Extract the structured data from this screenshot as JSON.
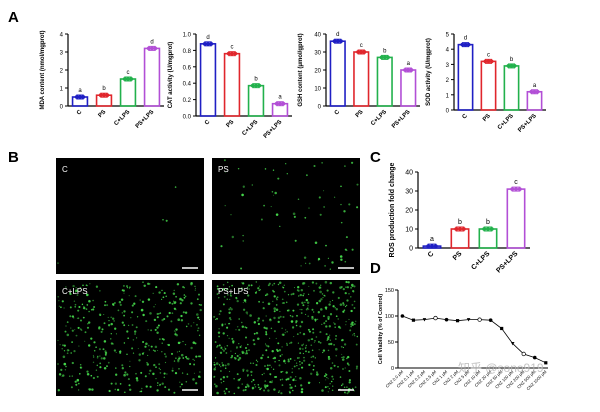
{
  "panel_labels": {
    "a": "A",
    "b": "B",
    "c": "C",
    "d": "D"
  },
  "colors": {
    "C": "#1f1fc4",
    "PS": "#e0262c",
    "C+LPS": "#22b14c",
    "PS+LPS": "#b24fd6",
    "cells": "#44d64a",
    "axis": "#000000"
  },
  "micrographs": [
    {
      "label": "C",
      "density": 4
    },
    {
      "label": "PS",
      "density": 70
    },
    {
      "label": "C+LPS",
      "density": 420
    },
    {
      "label": "PS+LPS",
      "density": 620
    }
  ],
  "watermark": "知乎 @sono919",
  "chart_data": [
    {
      "type": "bar",
      "panel": "A",
      "ylabel": "MDA content (nmol/mgprot)",
      "categories": [
        "C",
        "PS",
        "C+LPS",
        "PS+LPS"
      ],
      "values": [
        0.5,
        0.6,
        1.5,
        3.2
      ],
      "letters": [
        "a",
        "b",
        "c",
        "d"
      ],
      "ylim": [
        0,
        4
      ],
      "yticks": [
        "0",
        "1",
        "2",
        "3",
        "4"
      ]
    },
    {
      "type": "bar",
      "panel": "A",
      "ylabel": "CAT activity (U/mgprot)",
      "categories": [
        "C",
        "PS",
        "C+LPS",
        "PS+LPS"
      ],
      "values": [
        0.88,
        0.76,
        0.37,
        0.15
      ],
      "letters": [
        "d",
        "c",
        "b",
        "a"
      ],
      "ylim": [
        0,
        1.0
      ],
      "yticks": [
        "0.0",
        "0.2",
        "0.4",
        "0.6",
        "0.8",
        "1.0"
      ]
    },
    {
      "type": "bar",
      "panel": "A",
      "ylabel": "GSH content (μmol/gprot)",
      "categories": [
        "C",
        "PS",
        "C+LPS",
        "PS+LPS"
      ],
      "values": [
        36,
        30,
        27,
        20
      ],
      "letters": [
        "d",
        "c",
        "b",
        "a"
      ],
      "ylim": [
        0,
        40
      ],
      "yticks": [
        "0",
        "10",
        "20",
        "30",
        "40"
      ]
    },
    {
      "type": "bar",
      "panel": "A",
      "ylabel": "SOD activity (U/mgprot)",
      "categories": [
        "C",
        "PS",
        "C+LPS",
        "PS+LPS"
      ],
      "values": [
        4.3,
        3.2,
        2.9,
        1.2
      ],
      "letters": [
        "d",
        "c",
        "b",
        "a"
      ],
      "ylim": [
        0,
        5
      ],
      "yticks": [
        "0",
        "1",
        "2",
        "3",
        "4",
        "5"
      ]
    },
    {
      "type": "bar",
      "panel": "C",
      "ylabel": "ROS production fold change",
      "categories": [
        "C",
        "PS",
        "C+LPS",
        "PS+LPS"
      ],
      "values": [
        1.0,
        10,
        10,
        31
      ],
      "letters": [
        "a",
        "b",
        "b",
        "c"
      ],
      "ylim": [
        0,
        40
      ],
      "yticks": [
        "0",
        "10",
        "20",
        "30",
        "40"
      ]
    },
    {
      "type": "line",
      "panel": "D",
      "ylabel": "Cell Viability (% of Control)",
      "yticks": [
        "0",
        "50",
        "100",
        "150"
      ],
      "ylim": [
        0,
        150
      ],
      "categories": [
        "0.0 μM",
        "0.1 μM",
        "0.2 μM",
        "0.5 μM",
        "1 μM",
        "2 μM",
        "5 μM",
        "10 μM",
        "20 μM",
        "50 μM",
        "100 μM",
        "200 μM",
        "500 μM",
        "1000 μM"
      ],
      "values": [
        100,
        92,
        93,
        96,
        93,
        91,
        93,
        93,
        92,
        76,
        47,
        27,
        20,
        10
      ],
      "category_prefix": "CNZ"
    }
  ]
}
